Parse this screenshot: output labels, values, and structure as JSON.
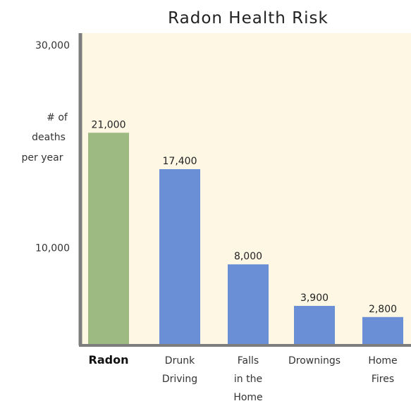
{
  "chart_data": {
    "type": "bar",
    "title": "Radon Health Risk",
    "ylabel": [
      "# of",
      "deaths",
      "per year"
    ],
    "ylim": [
      0,
      30000
    ],
    "yticks": [
      {
        "value": 30000,
        "label": "30,000"
      },
      {
        "value": 10000,
        "label": "10,000"
      }
    ],
    "categories": [
      {
        "label": [
          "Radon"
        ],
        "bold": true
      },
      {
        "label": [
          "Drunk",
          "Driving"
        ],
        "bold": false
      },
      {
        "label": [
          "Falls",
          "in the",
          "Home"
        ],
        "bold": false
      },
      {
        "label": [
          "Drownings"
        ],
        "bold": false
      },
      {
        "label": [
          "Home",
          "Fires"
        ],
        "bold": false
      }
    ],
    "values": [
      21000,
      17400,
      8000,
      3900,
      2800
    ],
    "value_labels": [
      "21,000",
      "17,400",
      "8,000",
      "3,900",
      "2,800"
    ],
    "bar_colors": [
      "#9dba83",
      "#6a8fd6",
      "#6a8fd6",
      "#6a8fd6",
      "#6a8fd6"
    ],
    "plot_background": "#fdf7e4",
    "axis_color": "#7d7d7d"
  }
}
